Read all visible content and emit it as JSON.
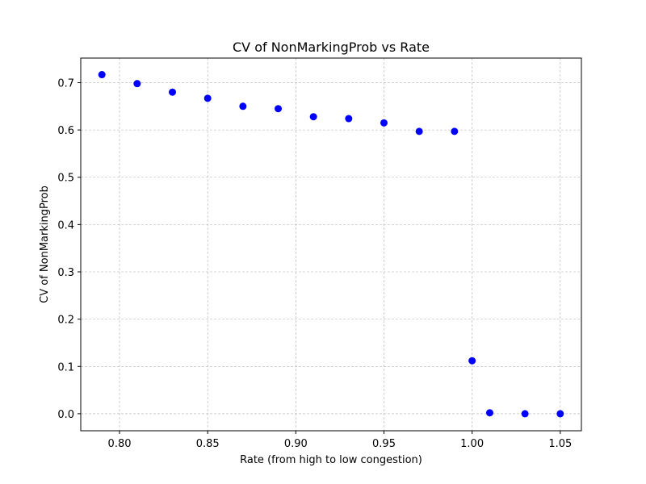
{
  "chart_data": {
    "type": "scatter",
    "title": "CV of NonMarkingProb vs Rate",
    "xlabel": "Rate (from high to low congestion)",
    "ylabel": "CV of NonMarkingProb",
    "xlim": [
      0.778,
      1.062
    ],
    "ylim": [
      -0.036,
      0.752
    ],
    "xticks": [
      0.8,
      0.85,
      0.9,
      0.95,
      1.0,
      1.05
    ],
    "xtick_labels": [
      "0.80",
      "0.85",
      "0.90",
      "0.95",
      "1.00",
      "1.05"
    ],
    "yticks": [
      0.0,
      0.1,
      0.2,
      0.3,
      0.4,
      0.5,
      0.6,
      0.7
    ],
    "ytick_labels": [
      "0.0",
      "0.1",
      "0.2",
      "0.3",
      "0.4",
      "0.5",
      "0.6",
      "0.7"
    ],
    "grid": true,
    "color": "#0000ff",
    "x": [
      0.79,
      0.81,
      0.83,
      0.85,
      0.87,
      0.89,
      0.91,
      0.93,
      0.95,
      0.97,
      0.99,
      1.0,
      1.01,
      1.03,
      1.05
    ],
    "y": [
      0.717,
      0.698,
      0.68,
      0.667,
      0.65,
      0.645,
      0.628,
      0.624,
      0.615,
      0.597,
      0.597,
      0.112,
      0.002,
      0.0,
      0.0
    ]
  }
}
